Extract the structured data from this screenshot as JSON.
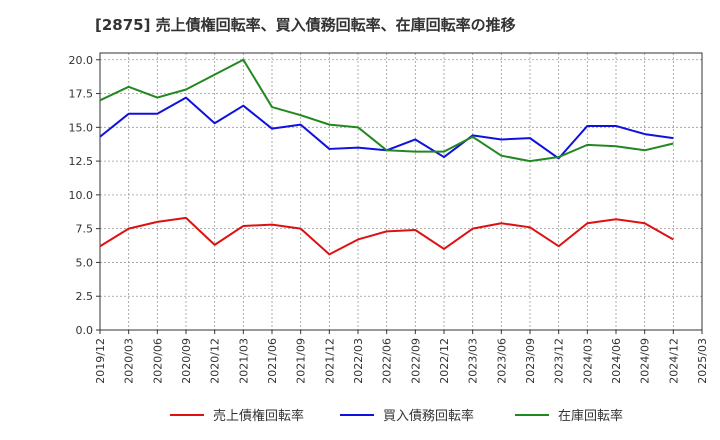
{
  "chart_data": {
    "type": "line",
    "title": "[2875]  売上債権回転率、買入債務回転率、在庫回転率の推移",
    "xlabel": "",
    "ylabel": "",
    "ylim": [
      0,
      20.5
    ],
    "yticks": [
      "0.0",
      "2.5",
      "5.0",
      "7.5",
      "10.0",
      "12.5",
      "15.0",
      "17.5",
      "20.0"
    ],
    "ytick_values": [
      0,
      2.5,
      5,
      7.5,
      10,
      12.5,
      15,
      17.5,
      20
    ],
    "categories": [
      "2019/12",
      "2020/03",
      "2020/06",
      "2020/09",
      "2020/12",
      "2021/03",
      "2021/06",
      "2021/09",
      "2021/12",
      "2022/03",
      "2022/06",
      "2022/09",
      "2022/12",
      "2023/03",
      "2023/06",
      "2023/09",
      "2023/12",
      "2024/03",
      "2024/06",
      "2024/09",
      "2024/12",
      "2025/03"
    ],
    "grid": true,
    "legend_position": "bottom",
    "series": [
      {
        "name": "売上債権回転率",
        "color": "#dd1111",
        "values": [
          6.2,
          7.5,
          8.0,
          8.3,
          6.3,
          7.7,
          7.8,
          7.5,
          5.6,
          6.7,
          7.3,
          7.4,
          6.0,
          7.5,
          7.9,
          7.6,
          6.2,
          7.9,
          8.2,
          7.9,
          6.7,
          null
        ]
      },
      {
        "name": "買入債務回転率",
        "color": "#1111dd",
        "values": [
          14.3,
          16.0,
          16.0,
          17.2,
          15.3,
          16.6,
          14.9,
          15.2,
          13.4,
          13.5,
          13.3,
          14.1,
          12.8,
          14.4,
          14.1,
          14.2,
          12.7,
          15.1,
          15.1,
          14.5,
          14.2,
          null
        ]
      },
      {
        "name": "在庫回転率",
        "color": "#228822",
        "values": [
          17.0,
          18.0,
          17.2,
          17.8,
          18.9,
          20.0,
          16.5,
          15.9,
          15.2,
          15.0,
          13.3,
          13.2,
          13.2,
          14.3,
          12.9,
          12.5,
          12.8,
          13.7,
          13.6,
          13.3,
          13.8,
          null
        ]
      }
    ]
  }
}
